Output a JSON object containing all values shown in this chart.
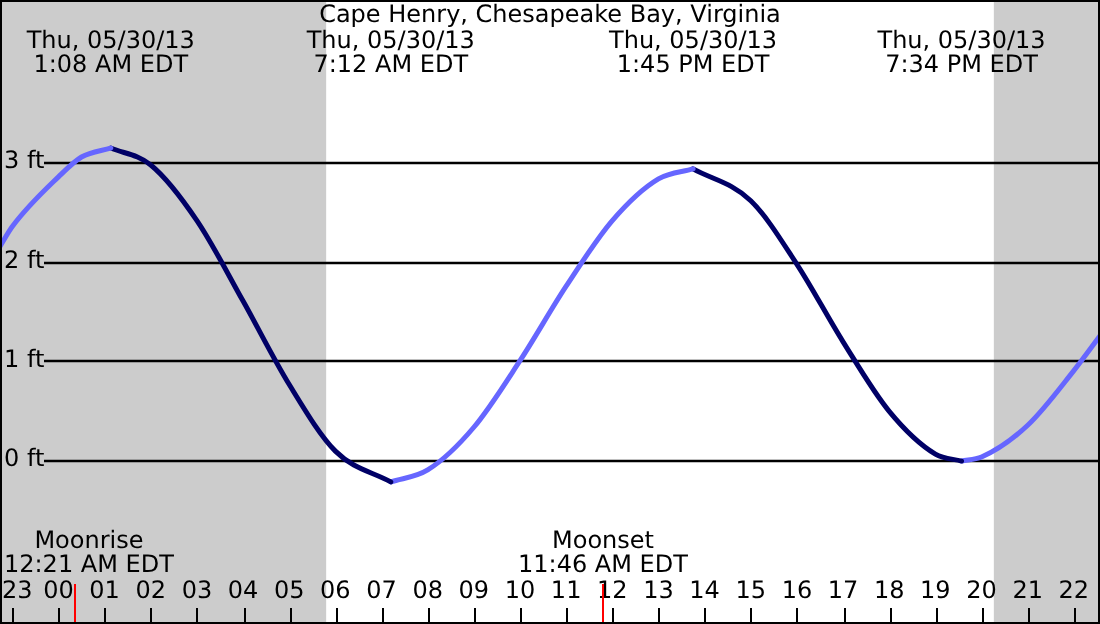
{
  "chart_data": {
    "type": "line",
    "title": "Cape Henry, Chesapeake Bay, Virginia",
    "xlim": [
      "--05-29T22:44",
      "--05-30T22:34"
    ],
    "ylim": [
      -1.65,
      4.63
    ],
    "xticks": [
      {
        "value": "--05-29T23:00",
        "label": "23"
      },
      {
        "value": "--05-30T00:00",
        "label": "00"
      },
      {
        "value": "--05-30T01:00",
        "label": "01"
      },
      {
        "value": "--05-30T02:00",
        "label": "02"
      },
      {
        "value": "--05-30T03:00",
        "label": "03"
      },
      {
        "value": "--05-30T04:00",
        "label": "04"
      },
      {
        "value": "--05-30T05:00",
        "label": "05"
      },
      {
        "value": "--05-30T06:00",
        "label": "06"
      },
      {
        "value": "--05-30T07:00",
        "label": "07"
      },
      {
        "value": "--05-30T08:00",
        "label": "08"
      },
      {
        "value": "--05-30T09:00",
        "label": "09"
      },
      {
        "value": "--05-30T10:00",
        "label": "10"
      },
      {
        "value": "--05-30T11:00",
        "label": "11"
      },
      {
        "value": "--05-30T12:00",
        "label": "12"
      },
      {
        "value": "--05-30T13:00",
        "label": "13"
      },
      {
        "value": "--05-30T14:00",
        "label": "14"
      },
      {
        "value": "--05-30T15:00",
        "label": "15"
      },
      {
        "value": "--05-30T16:00",
        "label": "16"
      },
      {
        "value": "--05-30T17:00",
        "label": "17"
      },
      {
        "value": "--05-30T18:00",
        "label": "18"
      },
      {
        "value": "--05-30T19:00",
        "label": "19"
      },
      {
        "value": "--05-30T20:00",
        "label": "20"
      },
      {
        "value": "--05-30T21:00",
        "label": "21"
      },
      {
        "value": "--05-30T22:00",
        "label": "22"
      }
    ],
    "yticks": [
      {
        "value": 0,
        "label": "0 ft"
      },
      {
        "value": 1,
        "label": "1 ft"
      },
      {
        "value": 2,
        "label": "2 ft"
      },
      {
        "value": 3,
        "label": "3 ft"
      }
    ],
    "grid": "y",
    "marker": "none",
    "line_style": "solid",
    "bands": [
      {
        "axis": "x",
        "from": "--05-29T22:44",
        "to": "--05-30T05:48",
        "color": "#cccccc"
      },
      {
        "axis": "x",
        "from": "--05-30T20:16",
        "to": "--05-30T22:34",
        "color": "#cccccc"
      }
    ],
    "ref_lines": [
      {
        "axis": "x",
        "value": "--05-30T00:21",
        "label": "Moonrise\n12:21 AM EDT",
        "color": "#ff0000"
      },
      {
        "axis": "x",
        "value": "--05-30T11:46",
        "label": "Moonset\n11:46 AM EDT",
        "color": "#ff0000"
      }
    ],
    "series": [
      {
        "color": "#6666ff",
        "x": [
          "--05-29T22:44",
          "--05-29T23:00",
          "--05-30T00:00",
          "--05-30T00:30",
          "--05-30T01:08"
        ],
        "values": [
          2.15,
          2.35,
          2.85,
          3.05,
          3.14
        ]
      },
      {
        "color": "#000066",
        "x": [
          "--05-30T01:08",
          "--05-30T02:00",
          "--05-30T03:00",
          "--05-30T04:00",
          "--05-30T05:00",
          "--05-30T06:00",
          "--05-30T07:12"
        ],
        "values": [
          3.14,
          2.97,
          2.41,
          1.6,
          0.76,
          0.09,
          -0.22
        ]
      },
      {
        "color": "#6666ff",
        "x": [
          "--05-30T07:12",
          "--05-30T08:00",
          "--05-30T09:00",
          "--05-30T10:00",
          "--05-30T11:00",
          "--05-30T12:00",
          "--05-30T13:00",
          "--05-30T13:45"
        ],
        "values": [
          -0.22,
          -0.1,
          0.33,
          1.0,
          1.75,
          2.41,
          2.83,
          2.93
        ]
      },
      {
        "color": "#000066",
        "x": [
          "--05-30T13:45",
          "--05-30T15:00",
          "--05-30T16:00",
          "--05-30T17:00",
          "--05-30T18:00",
          "--05-30T19:00",
          "--05-30T19:34"
        ],
        "values": [
          2.93,
          2.61,
          1.97,
          1.19,
          0.49,
          0.06,
          -0.01
        ]
      },
      {
        "color": "#6666ff",
        "x": [
          "--05-30T19:34",
          "--05-30T20:00",
          "--05-30T21:00",
          "--05-30T22:00",
          "--05-30T22:34"
        ],
        "values": [
          -0.01,
          0.03,
          0.35,
          0.9,
          1.25
        ]
      }
    ],
    "annotations": [
      "Thu, 05/30/13\n1:08 AM EDT",
      "Thu, 05/30/13\n7:12 AM EDT",
      "Thu, 05/30/13\n1:45 PM EDT",
      "Thu, 05/30/13\n7:34 PM EDT"
    ]
  }
}
